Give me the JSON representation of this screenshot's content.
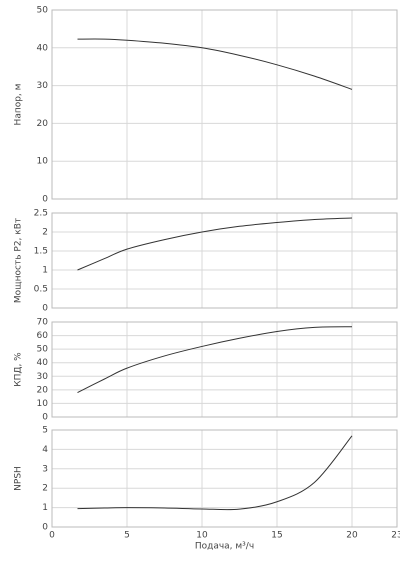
{
  "chart_data": [
    {
      "type": "line",
      "ylabel": "Напор, м",
      "x": [
        1.7,
        3.5,
        5,
        7.5,
        10,
        12.5,
        15,
        17.5,
        20
      ],
      "series": [
        {
          "color": "#333333",
          "values": [
            42.3,
            42.3,
            42,
            41.2,
            40,
            38,
            35.5,
            32.5,
            29
          ]
        }
      ],
      "xlim": [
        0,
        23
      ],
      "ylim": [
        0,
        50
      ],
      "yticks": [
        0,
        10,
        20,
        30,
        40,
        50
      ],
      "grid": true
    },
    {
      "type": "line",
      "ylabel": "Мощность P2, кВт",
      "x": [
        1.7,
        3.5,
        5,
        7.5,
        10,
        12.5,
        15,
        17.5,
        20
      ],
      "series": [
        {
          "color": "#333333",
          "values": [
            1.0,
            1.3,
            1.55,
            1.8,
            2.0,
            2.15,
            2.25,
            2.33,
            2.37
          ]
        }
      ],
      "xlim": [
        0,
        23
      ],
      "ylim": [
        0,
        2.5
      ],
      "yticks": [
        0,
        0.5,
        1,
        1.5,
        2,
        2.5
      ],
      "grid": true
    },
    {
      "type": "line",
      "ylabel": "КПД, %",
      "x": [
        1.7,
        3.5,
        5,
        7.5,
        10,
        12.5,
        15,
        17.5,
        20
      ],
      "series": [
        {
          "color": "#333333",
          "values": [
            18,
            28,
            36,
            45,
            52,
            58,
            63,
            66,
            66.5
          ]
        }
      ],
      "xlim": [
        0,
        23
      ],
      "ylim": [
        0,
        70
      ],
      "yticks": [
        0,
        10,
        20,
        30,
        40,
        50,
        60,
        70
      ],
      "grid": true
    },
    {
      "type": "line",
      "ylabel": "NPSH",
      "xlabel": "Подача, м³/ч",
      "x": [
        1.7,
        3.5,
        5,
        7.5,
        10,
        12.5,
        15,
        17.5,
        20
      ],
      "series": [
        {
          "color": "#333333",
          "values": [
            0.95,
            0.98,
            1.0,
            0.98,
            0.93,
            0.92,
            1.3,
            2.3,
            4.7
          ]
        }
      ],
      "xlim": [
        0,
        23
      ],
      "xticks": [
        0,
        5,
        10,
        15,
        20,
        23
      ],
      "ylim": [
        0,
        5
      ],
      "yticks": [
        0,
        1,
        2,
        3,
        4,
        5
      ],
      "grid": true
    }
  ]
}
